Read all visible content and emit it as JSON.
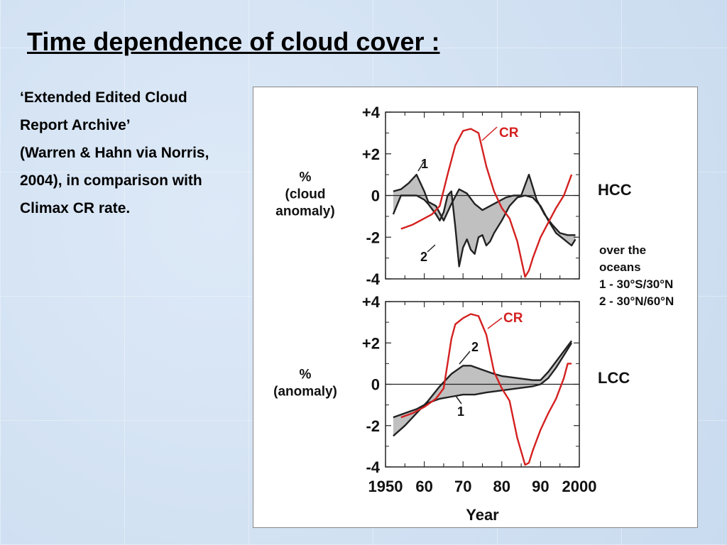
{
  "slide": {
    "title": "Time dependence of cloud cover :",
    "description": [
      "‘Extended Edited Cloud",
      "Report Archive’",
      "(Warren & Hahn via Norris,",
      "2004), in comparison with",
      "Climax CR rate."
    ]
  },
  "colors": {
    "cr": "#d42020",
    "cloud": "#222222",
    "fill": "#c0c0c0"
  },
  "chart_data": [
    {
      "type": "line",
      "panel_label": "HCC",
      "ylabel": [
        "%",
        "(cloud",
        "anomaly)"
      ],
      "ylim": [
        -4,
        4
      ],
      "yticks": [
        4,
        2,
        0,
        -2,
        -4
      ],
      "ytick_labels": [
        "+4",
        "+2",
        "0",
        "-2",
        "-4"
      ],
      "xlim": [
        1950,
        2000
      ],
      "series_labels": {
        "cr": "CR",
        "s1": "1",
        "s2": "2"
      },
      "region_note": [
        "over the",
        "oceans",
        "1 - 30°S/30°N",
        "2 - 30°N/60°N"
      ],
      "series": [
        {
          "id": "s1",
          "x": [
            1952,
            1954,
            1956,
            1958,
            1960,
            1961,
            1963,
            1965,
            1967,
            1969,
            1971,
            1973,
            1975,
            1977,
            1979,
            1981,
            1983,
            1985,
            1987,
            1989,
            1991,
            1993,
            1995,
            1997,
            1999
          ],
          "y": [
            0.2,
            0.3,
            0.6,
            1.0,
            0.2,
            -0.3,
            -0.5,
            -1.2,
            -0.4,
            0.3,
            0.1,
            -0.4,
            -0.7,
            -0.5,
            -0.3,
            -0.1,
            0.0,
            0.0,
            1.0,
            -0.2,
            -0.9,
            -1.4,
            -1.8,
            -1.9,
            -1.9
          ]
        },
        {
          "id": "s2",
          "x": [
            1952,
            1954,
            1956,
            1958,
            1960,
            1961,
            1963,
            1964,
            1965,
            1966,
            1967,
            1968,
            1969,
            1970,
            1971,
            1972,
            1973,
            1974,
            1975,
            1976,
            1977,
            1978,
            1980,
            1982,
            1984,
            1986,
            1988,
            1990,
            1992,
            1994,
            1996,
            1998,
            1999
          ],
          "y": [
            -0.9,
            0.0,
            0.0,
            0.0,
            -0.2,
            -0.4,
            -0.9,
            -1.2,
            -0.8,
            0.0,
            0.2,
            -1.5,
            -3.4,
            -2.5,
            -2.1,
            -2.6,
            -2.8,
            -2.0,
            -1.9,
            -2.4,
            -2.2,
            -1.8,
            -1.2,
            -0.5,
            -0.1,
            0.0,
            -0.1,
            -0.5,
            -1.2,
            -1.8,
            -2.1,
            -2.4,
            -2.1
          ]
        },
        {
          "id": "cr",
          "x": [
            1954,
            1957,
            1960,
            1962,
            1964,
            1966,
            1968,
            1970,
            1972,
            1974,
            1976,
            1978,
            1980,
            1982,
            1984,
            1986,
            1987,
            1988,
            1990,
            1992,
            1994,
            1996,
            1998
          ],
          "y": [
            -1.6,
            -1.4,
            -1.1,
            -0.9,
            -0.5,
            1.0,
            2.4,
            3.1,
            3.2,
            3.0,
            1.4,
            0.2,
            -0.6,
            -1.1,
            -2.2,
            -3.9,
            -3.6,
            -3.0,
            -2.0,
            -1.3,
            -0.6,
            0.0,
            1.0
          ]
        }
      ]
    },
    {
      "type": "line",
      "panel_label": "LCC",
      "ylabel": [
        "%",
        "(anomaly)"
      ],
      "ylim": [
        -4,
        4
      ],
      "yticks": [
        4,
        2,
        0,
        -2,
        -4
      ],
      "ytick_labels": [
        "+4",
        "+2",
        "0",
        "-2",
        "-4"
      ],
      "xlim": [
        1950,
        2000
      ],
      "xticks": [
        1950,
        1960,
        1970,
        1980,
        1990,
        2000
      ],
      "xtick_labels": [
        "1950",
        "60",
        "70",
        "80",
        "90",
        "2000"
      ],
      "xlabel": "Year",
      "series_labels": {
        "cr": "CR",
        "s1": "1",
        "s2": "2"
      },
      "series": [
        {
          "id": "s1",
          "x": [
            1952,
            1955,
            1958,
            1961,
            1964,
            1967,
            1970,
            1973,
            1976,
            1980,
            1984,
            1988,
            1990,
            1992,
            1994,
            1996,
            1998
          ],
          "y": [
            -1.6,
            -1.4,
            -1.2,
            -0.9,
            -0.7,
            -0.6,
            -0.5,
            -0.5,
            -0.4,
            -0.3,
            -0.2,
            -0.1,
            0.0,
            0.3,
            0.8,
            1.4,
            2.0
          ]
        },
        {
          "id": "s2",
          "x": [
            1952,
            1955,
            1958,
            1961,
            1964,
            1967,
            1970,
            1972,
            1975,
            1978,
            1980,
            1984,
            1988,
            1990,
            1992,
            1994,
            1996,
            1998
          ],
          "y": [
            -2.5,
            -2.0,
            -1.4,
            -0.8,
            -0.1,
            0.5,
            0.9,
            0.9,
            0.7,
            0.5,
            0.4,
            0.3,
            0.2,
            0.2,
            0.6,
            1.1,
            1.6,
            2.1
          ]
        },
        {
          "id": "cr",
          "x": [
            1954,
            1957,
            1960,
            1963,
            1965,
            1966,
            1967,
            1968,
            1970,
            1972,
            1974,
            1976,
            1978,
            1980,
            1982,
            1984,
            1986,
            1987,
            1988,
            1990,
            1992,
            1994,
            1996,
            1997,
            1998
          ],
          "y": [
            -1.6,
            -1.4,
            -1.1,
            -0.7,
            -0.2,
            1.0,
            2.2,
            2.9,
            3.2,
            3.4,
            3.3,
            2.4,
            0.6,
            -0.2,
            -0.8,
            -2.6,
            -3.9,
            -3.8,
            -3.2,
            -2.2,
            -1.4,
            -0.7,
            0.3,
            1.0,
            1.0
          ]
        }
      ]
    }
  ]
}
